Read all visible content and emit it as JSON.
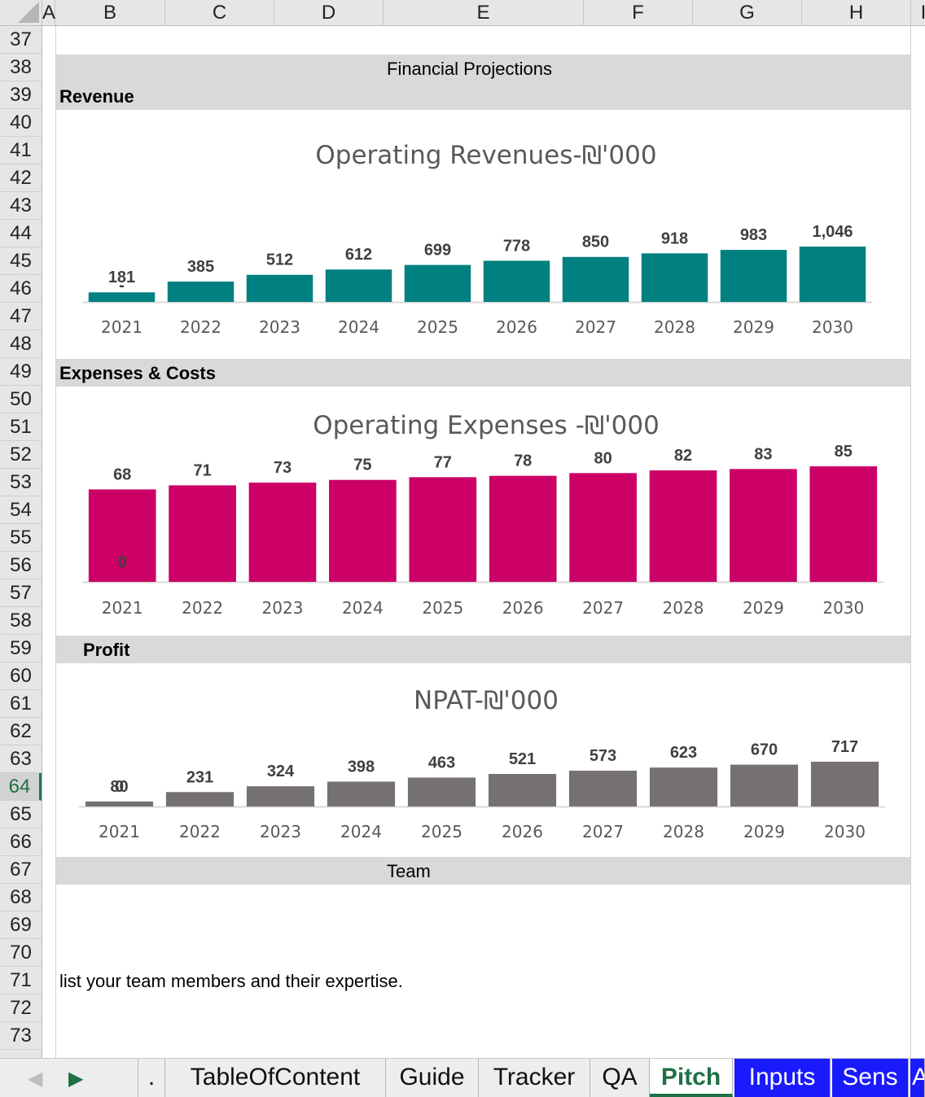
{
  "columns": [
    "A",
    "B",
    "C",
    "D",
    "E",
    "F",
    "G",
    "H",
    "I"
  ],
  "rows": [
    "37",
    "38",
    "39",
    "40",
    "41",
    "42",
    "43",
    "44",
    "45",
    "46",
    "47",
    "48",
    "49",
    "50",
    "51",
    "52",
    "53",
    "54",
    "55",
    "56",
    "57",
    "58",
    "59",
    "60",
    "61",
    "62",
    "63",
    "64",
    "65",
    "66",
    "67",
    "68",
    "69",
    "70",
    "71",
    "72",
    "73"
  ],
  "active_row": "64",
  "sections": {
    "financial": "Financial Projections",
    "revenue": "Revenue",
    "expenses": "Expenses & Costs",
    "profit": "Profit",
    "team": "Team"
  },
  "note": "list your team members and their expertise.",
  "colors": {
    "revenue_bar": "#008080",
    "expense_bar": "#cc0066",
    "profit_bar": "#767171",
    "band": "#d9d9d9",
    "tab_blue": "#1a1aff",
    "tab_active": "#1e7145"
  },
  "chart_data": [
    {
      "type": "bar",
      "title": "Operating Revenues-₪'000",
      "categories": [
        "2021",
        "2022",
        "2023",
        "2024",
        "2025",
        "2026",
        "2027",
        "2028",
        "2029",
        "2030"
      ],
      "values": [
        181,
        385,
        512,
        612,
        699,
        778,
        850,
        918,
        983,
        1046
      ],
      "labels": [
        "181",
        "385",
        "512",
        "612",
        "699",
        "778",
        "850",
        "918",
        "983",
        "1,046"
      ],
      "extra_label": {
        "index": 0,
        "text": "-"
      }
    },
    {
      "type": "bar",
      "title": "Operating Expenses -₪'000",
      "categories": [
        "2021",
        "2022",
        "2023",
        "2024",
        "2025",
        "2026",
        "2027",
        "2028",
        "2029",
        "2030"
      ],
      "values": [
        68,
        71,
        73,
        75,
        77,
        78,
        80,
        82,
        83,
        85
      ],
      "labels": [
        "68",
        "71",
        "73",
        "75",
        "77",
        "78",
        "80",
        "82",
        "83",
        "85"
      ],
      "extra_label": {
        "index": 0,
        "text": "0"
      }
    },
    {
      "type": "bar",
      "title": "NPAT-₪'000",
      "categories": [
        "2021",
        "2022",
        "2023",
        "2024",
        "2025",
        "2026",
        "2027",
        "2028",
        "2029",
        "2030"
      ],
      "values": [
        80,
        231,
        324,
        398,
        463,
        521,
        573,
        623,
        670,
        717
      ],
      "labels": [
        "80",
        "231",
        "324",
        "398",
        "463",
        "521",
        "573",
        "623",
        "670",
        "717"
      ],
      "extra_label": {
        "index": 0,
        "text": "0"
      }
    }
  ],
  "tabs": [
    {
      "label": "."
    },
    {
      "label": "TableOfContent"
    },
    {
      "label": "Guide"
    },
    {
      "label": "Tracker"
    },
    {
      "label": "QA"
    },
    {
      "label": "Pitch"
    },
    {
      "label": "Inputs"
    },
    {
      "label": "Sens"
    },
    {
      "label": "A"
    }
  ],
  "nav": {
    "prev": "◀",
    "next": "▶"
  }
}
